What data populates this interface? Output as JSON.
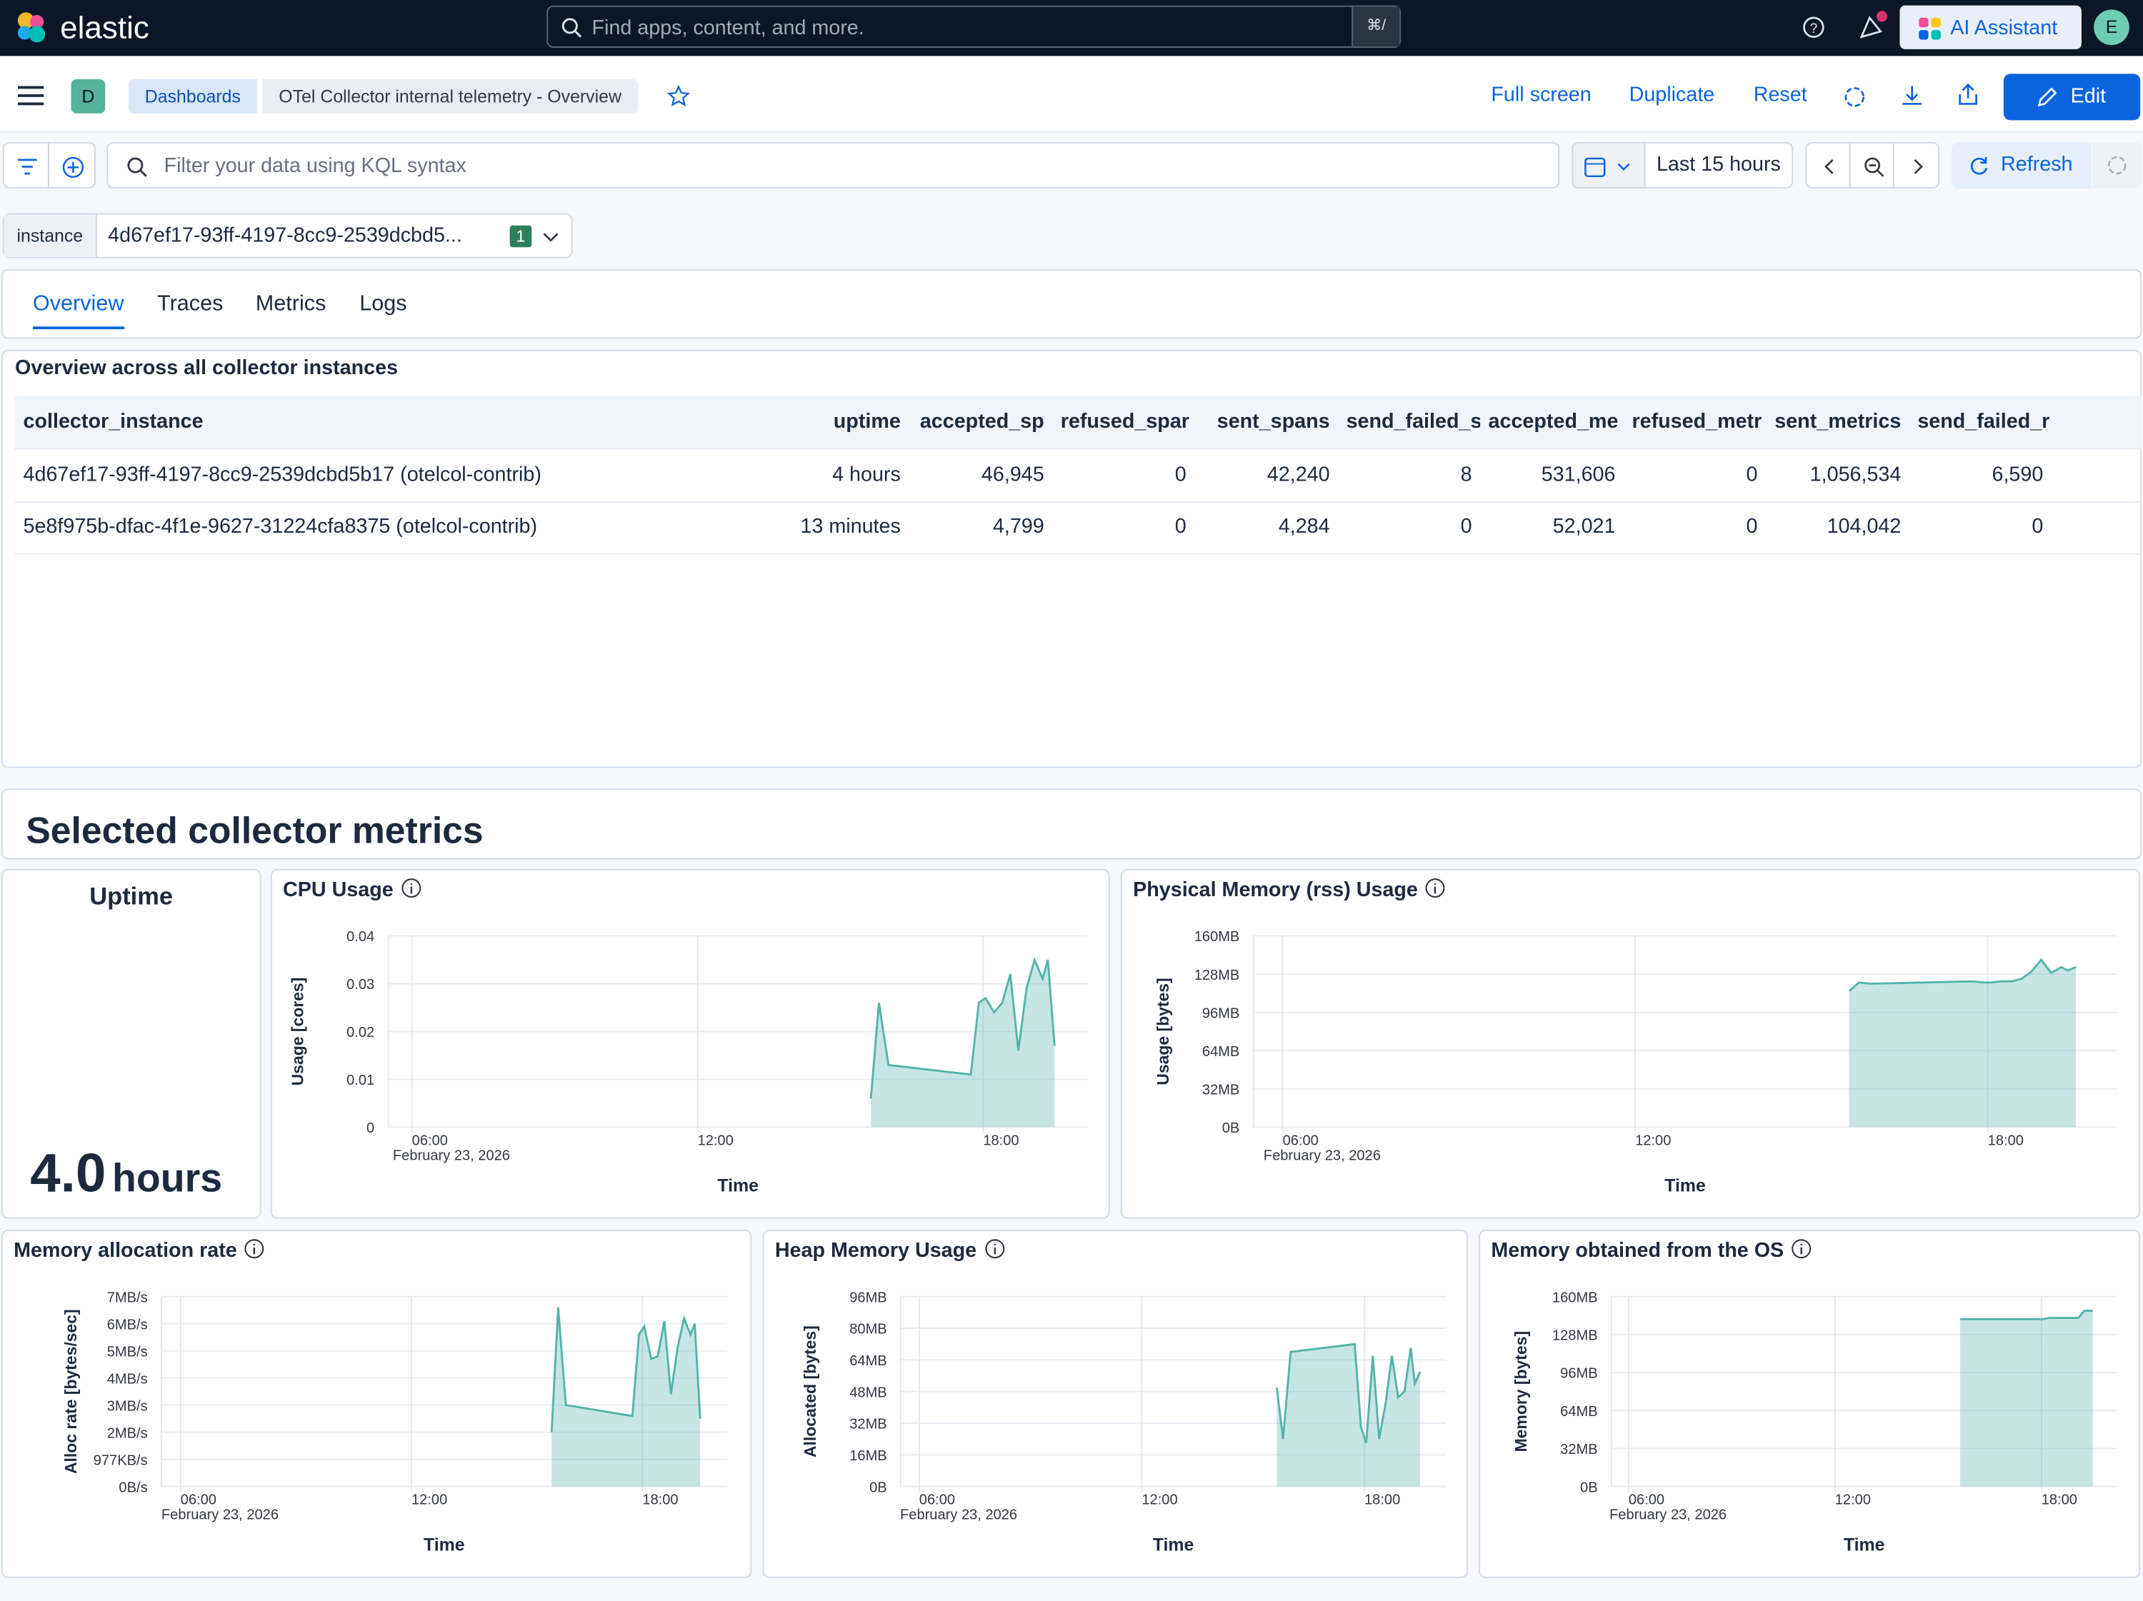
{
  "header": {
    "brand": "elastic",
    "search_placeholder": "Find apps, content, and more.",
    "search_shortcut": "⌘/",
    "ai_assistant": "AI Assistant",
    "avatar": "E"
  },
  "toolbar": {
    "space": "D",
    "breadcrumbs": [
      "Dashboards",
      "OTel Collector internal telemetry - Overview"
    ],
    "actions": [
      "Full screen",
      "Duplicate",
      "Reset"
    ],
    "edit": "Edit"
  },
  "query": {
    "placeholder": "Filter your data using KQL syntax",
    "time_range": "Last 15 hours",
    "refresh": "Refresh"
  },
  "control": {
    "label": "instance",
    "value": "4d67ef17-93ff-4197-8cc9-2539dcbd5...",
    "selected_count": 1
  },
  "tabs": {
    "items": [
      "Overview",
      "Traces",
      "Metrics",
      "Logs"
    ],
    "active": 0
  },
  "table": {
    "title": "Overview across all collector instances",
    "columns": [
      "collector_instance",
      "uptime",
      "accepted_sp",
      "refused_spar",
      "sent_spans",
      "send_failed_s",
      "accepted_me",
      "refused_metr",
      "sent_metrics",
      "send_failed_r"
    ],
    "rows": [
      [
        "4d67ef17-93ff-4197-8cc9-2539dcbd5b17 (otelcol-contrib)",
        "4 hours",
        "46,945",
        "0",
        "42,240",
        "8",
        "531,606",
        "0",
        "1,056,534",
        "6,590"
      ],
      [
        "5e8f975b-dfac-4f1e-9627-31224cfa8375 (otelcol-contrib)",
        "13 minutes",
        "4,799",
        "0",
        "4,284",
        "0",
        "52,021",
        "0",
        "104,042",
        "0"
      ]
    ]
  },
  "section_title": "Selected collector metrics",
  "uptime": {
    "title": "Uptime",
    "value": "4.0",
    "unit": "hours"
  },
  "panels": [
    {
      "type": "area",
      "title": "CPU Usage",
      "y_label": "Usage [cores]",
      "x_label": "Time",
      "x_date_label": "February 23, 2026",
      "color": "#54b3a9",
      "xlim": [
        5.5,
        20.2
      ],
      "xticks": [
        {
          "value": 6,
          "label": "06:00"
        },
        {
          "value": 12,
          "label": "12:00"
        },
        {
          "value": 18,
          "label": "18:00"
        }
      ],
      "ylim": [
        0,
        0.04
      ],
      "yticks": [
        0,
        0.01,
        0.02,
        0.03,
        0.04
      ],
      "x": [
        15.64,
        15.81,
        16.01,
        17.74,
        17.91,
        18.05,
        18.23,
        18.4,
        18.57,
        18.74,
        18.91,
        19.08,
        19.25,
        19.36,
        19.5
      ],
      "values": [
        0.006,
        0.026,
        0.013,
        0.011,
        0.026,
        0.027,
        0.024,
        0.026,
        0.032,
        0.016,
        0.029,
        0.035,
        0.031,
        0.035,
        0.017
      ]
    },
    {
      "type": "area",
      "title": "Physical Memory (rss) Usage",
      "y_label": "Usage [bytes]",
      "x_label": "Time",
      "x_date_label": "February 23, 2026",
      "color": "#54b3a9",
      "xlim": [
        5.5,
        20.2
      ],
      "xticks": [
        {
          "value": 6,
          "label": "06:00"
        },
        {
          "value": 12,
          "label": "12:00"
        },
        {
          "value": 18,
          "label": "18:00"
        }
      ],
      "ylim": [
        0,
        160
      ],
      "yticks": [
        {
          "value": 0,
          "label": "0B"
        },
        {
          "value": 32,
          "label": "32MB"
        },
        {
          "value": 64,
          "label": "64MB"
        },
        {
          "value": 96,
          "label": "96MB"
        },
        {
          "value": 128,
          "label": "128MB"
        },
        {
          "value": 160,
          "label": "160MB"
        }
      ],
      "x": [
        15.64,
        15.81,
        16.01,
        17.74,
        17.91,
        18.05,
        18.23,
        18.4,
        18.57,
        18.74,
        18.91,
        19.08,
        19.25,
        19.36,
        19.5
      ],
      "values": [
        114,
        121,
        120,
        122,
        121,
        121,
        122,
        122,
        124,
        130,
        140,
        129,
        134,
        131,
        134
      ]
    },
    {
      "type": "area",
      "title": "Memory allocation rate",
      "y_label": "Alloc rate [bytes/sec]",
      "x_label": "Time",
      "x_date_label": "February 23, 2026",
      "color": "#54b3a9",
      "xlim": [
        5.5,
        20.2
      ],
      "xticks": [
        {
          "value": 6,
          "label": "06:00"
        },
        {
          "value": 12,
          "label": "12:00"
        },
        {
          "value": 18,
          "label": "18:00"
        }
      ],
      "ylim": [
        0,
        7000000
      ],
      "yticks": [
        {
          "value": 0,
          "label": "0B/s"
        },
        {
          "value": 1000000,
          "label": "977KB/s"
        },
        {
          "value": 2000000,
          "label": "2MB/s"
        },
        {
          "value": 3000000,
          "label": "3MB/s"
        },
        {
          "value": 4000000,
          "label": "4MB/s"
        },
        {
          "value": 5000000,
          "label": "5MB/s"
        },
        {
          "value": 6000000,
          "label": "6MB/s"
        },
        {
          "value": 7000000,
          "label": "7MB/s"
        }
      ],
      "x": [
        15.64,
        15.81,
        16.01,
        17.74,
        17.91,
        18.05,
        18.23,
        18.4,
        18.57,
        18.74,
        18.91,
        19.08,
        19.25,
        19.36,
        19.5
      ],
      "values": [
        2000000,
        6600000,
        3000000,
        2600000,
        5600000,
        5900000,
        4700000,
        4800000,
        6100000,
        3400000,
        5100000,
        6200000,
        5600000,
        6000000,
        2500000
      ]
    },
    {
      "type": "area",
      "title": "Heap Memory Usage",
      "y_label": "Allocated [bytes]",
      "x_label": "Time",
      "x_date_label": "February 23, 2026",
      "color": "#54b3a9",
      "xlim": [
        5.5,
        20.2
      ],
      "xticks": [
        {
          "value": 6,
          "label": "06:00"
        },
        {
          "value": 12,
          "label": "12:00"
        },
        {
          "value": 18,
          "label": "18:00"
        }
      ],
      "ylim": [
        0,
        96
      ],
      "yticks": [
        {
          "value": 0,
          "label": "0B"
        },
        {
          "value": 16,
          "label": "16MB"
        },
        {
          "value": 32,
          "label": "32MB"
        },
        {
          "value": 48,
          "label": "48MB"
        },
        {
          "value": 64,
          "label": "64MB"
        },
        {
          "value": 80,
          "label": "80MB"
        },
        {
          "value": 96,
          "label": "96MB"
        }
      ],
      "x": [
        15.64,
        15.81,
        16.01,
        17.74,
        17.91,
        18.05,
        18.23,
        18.4,
        18.57,
        18.74,
        18.91,
        19.08,
        19.25,
        19.36,
        19.5
      ],
      "values": [
        50,
        24,
        68,
        72,
        30,
        22,
        66,
        24,
        42,
        66,
        45,
        48,
        70,
        52,
        58
      ]
    },
    {
      "type": "area",
      "title": "Memory obtained from the OS",
      "y_label": "Memory [bytes]",
      "x_label": "Time",
      "x_date_label": "February 23, 2026",
      "color": "#54b3a9",
      "xlim": [
        5.5,
        20.2
      ],
      "xticks": [
        {
          "value": 6,
          "label": "06:00"
        },
        {
          "value": 12,
          "label": "12:00"
        },
        {
          "value": 18,
          "label": "18:00"
        }
      ],
      "ylim": [
        0,
        160
      ],
      "yticks": [
        {
          "value": 0,
          "label": "0B"
        },
        {
          "value": 32,
          "label": "32MB"
        },
        {
          "value": 64,
          "label": "64MB"
        },
        {
          "value": 96,
          "label": "96MB"
        },
        {
          "value": 128,
          "label": "128MB"
        },
        {
          "value": 160,
          "label": "160MB"
        }
      ],
      "x": [
        15.64,
        15.81,
        16.01,
        17.74,
        17.91,
        18.05,
        18.23,
        18.4,
        18.57,
        18.74,
        18.91,
        19.08,
        19.25,
        19.36,
        19.5
      ],
      "values": [
        141,
        141,
        141,
        141,
        141,
        141,
        142,
        142,
        142,
        142,
        142,
        142,
        148,
        148,
        148
      ]
    }
  ]
}
